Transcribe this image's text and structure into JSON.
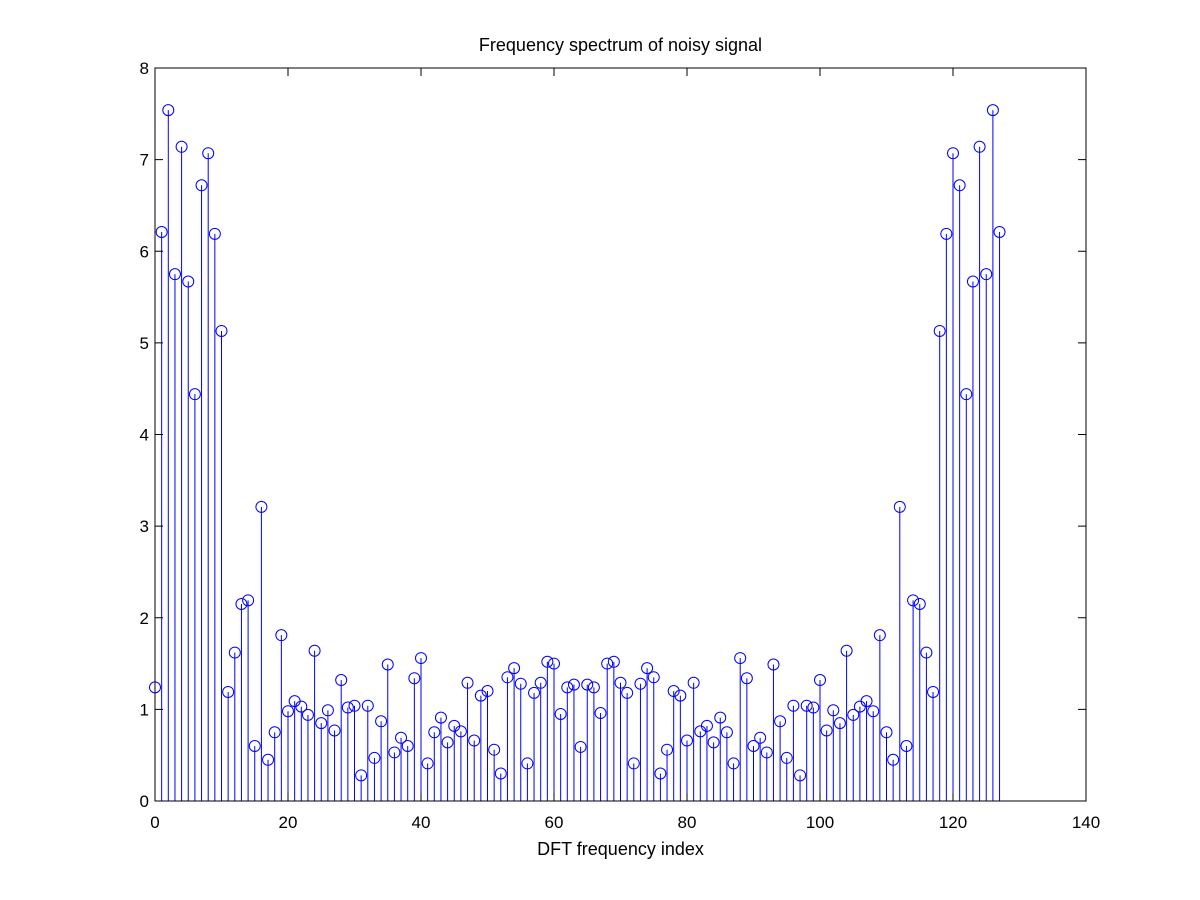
{
  "chart_data": {
    "type": "stem",
    "title": "Frequency spectrum of noisy signal",
    "xlabel": "DFT frequency index",
    "ylabel": "",
    "xlim": [
      0,
      140
    ],
    "ylim": [
      0,
      8
    ],
    "xticks": [
      0,
      20,
      40,
      60,
      80,
      100,
      120,
      140
    ],
    "yticks": [
      0,
      1,
      2,
      3,
      4,
      5,
      6,
      7,
      8
    ],
    "grid": false,
    "series_color": "#0000ff",
    "series": [
      {
        "x": [
          0,
          1,
          2,
          3,
          4,
          5,
          6,
          7,
          8,
          9,
          10,
          11,
          12,
          13,
          14,
          15,
          16,
          17,
          18,
          19,
          20,
          21,
          22,
          23,
          24,
          25,
          26,
          27,
          28,
          29,
          30,
          31,
          32,
          33,
          34,
          35,
          36,
          37,
          38,
          39,
          40,
          41,
          42,
          43,
          44,
          45,
          46,
          47,
          48,
          49,
          50,
          51,
          52,
          53,
          54,
          55,
          56,
          57,
          58,
          59,
          60,
          61,
          62,
          63,
          64,
          65,
          66,
          67,
          68,
          69,
          70,
          71,
          72,
          73,
          74,
          75,
          76,
          77,
          78,
          79,
          80,
          81,
          82,
          83,
          84,
          85,
          86,
          87,
          88,
          89,
          90,
          91,
          92,
          93,
          94,
          95,
          96,
          97,
          98,
          99,
          100,
          101,
          102,
          103,
          104,
          105,
          106,
          107,
          108,
          109,
          110,
          111,
          112,
          113,
          114,
          115,
          116,
          117,
          118,
          119,
          120,
          121,
          122,
          123,
          124,
          125,
          126,
          127
        ],
        "values": [
          1.24,
          6.21,
          7.54,
          5.75,
          7.14,
          5.67,
          4.44,
          6.72,
          7.07,
          6.19,
          5.13,
          1.19,
          1.62,
          2.15,
          2.19,
          0.6,
          3.21,
          0.45,
          0.75,
          1.81,
          0.98,
          1.09,
          1.03,
          0.94,
          1.64,
          0.85,
          0.99,
          0.77,
          1.32,
          1.02,
          1.04,
          0.28,
          1.04,
          0.47,
          0.87,
          1.49,
          0.53,
          0.69,
          0.6,
          1.34,
          1.56,
          0.41,
          0.75,
          0.91,
          0.64,
          0.82,
          0.76,
          1.29,
          0.66,
          1.15,
          1.2,
          0.56,
          0.3,
          1.35,
          1.45,
          1.28,
          0.41,
          1.18,
          1.29,
          1.52,
          1.5,
          0.95,
          1.24,
          1.27,
          0.59,
          1.27,
          1.24,
          0.96,
          1.5,
          1.52,
          1.29,
          1.18,
          0.41,
          1.28,
          1.45,
          1.35,
          0.3,
          0.56,
          1.2,
          1.15,
          0.66,
          1.29,
          0.76,
          0.82,
          0.64,
          0.91,
          0.75,
          0.41,
          1.56,
          1.34,
          0.6,
          0.69,
          0.53,
          1.49,
          0.87,
          0.47,
          1.04,
          0.28,
          1.04,
          1.02,
          1.32,
          0.77,
          0.99,
          0.85,
          1.64,
          0.94,
          1.03,
          1.09,
          0.98,
          1.81,
          0.75,
          0.45,
          3.21,
          0.6,
          2.19,
          2.15,
          1.62,
          1.19,
          5.13,
          6.19,
          7.07,
          6.72,
          4.44,
          5.67,
          7.14,
          5.75,
          7.54,
          6.21
        ]
      }
    ]
  }
}
